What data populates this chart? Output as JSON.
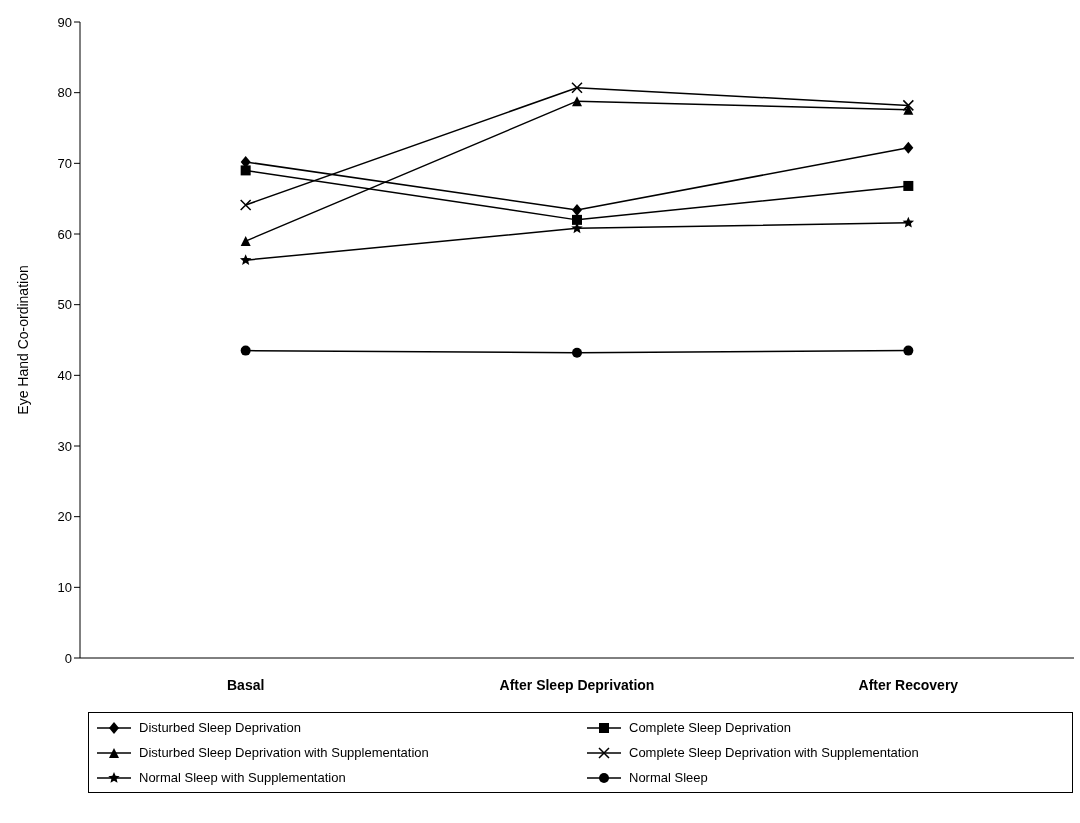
{
  "chart_data": {
    "type": "line",
    "ylabel": "Eye Hand Co-ordination",
    "categories": [
      "Basal",
      "After Sleep Deprivation",
      "After Recovery"
    ],
    "ylim": [
      0,
      90
    ],
    "yticks": [
      0,
      10,
      20,
      30,
      40,
      50,
      60,
      70,
      80,
      90
    ],
    "grid": false,
    "legend": "bottom",
    "line_style": "solid",
    "series": [
      {
        "name": "Disturbed Sleep Deprivation",
        "color": "#000000",
        "marker": "diamond",
        "values": [
          70.2,
          63.4,
          72.2
        ]
      },
      {
        "name": "Complete Sleep Deprivation",
        "color": "#000000",
        "marker": "square",
        "values": [
          69,
          62,
          66.8
        ]
      },
      {
        "name": "Disturbed Sleep Deprivation with Supplementation",
        "color": "#000000",
        "marker": "triangle",
        "values": [
          59,
          78.8,
          77.6
        ]
      },
      {
        "name": "Complete Sleep Deprivation with Supplementation",
        "color": "#000000",
        "marker": "cross",
        "values": [
          64.1,
          80.7,
          78.2
        ]
      },
      {
        "name": "Normal Sleep with Supplementation",
        "color": "#000000",
        "marker": "star",
        "values": [
          56.3,
          60.8,
          61.6
        ]
      },
      {
        "name": "Normal Sleep",
        "color": "#000000",
        "marker": "circle",
        "values": [
          43.5,
          43.2,
          43.5
        ]
      }
    ]
  }
}
